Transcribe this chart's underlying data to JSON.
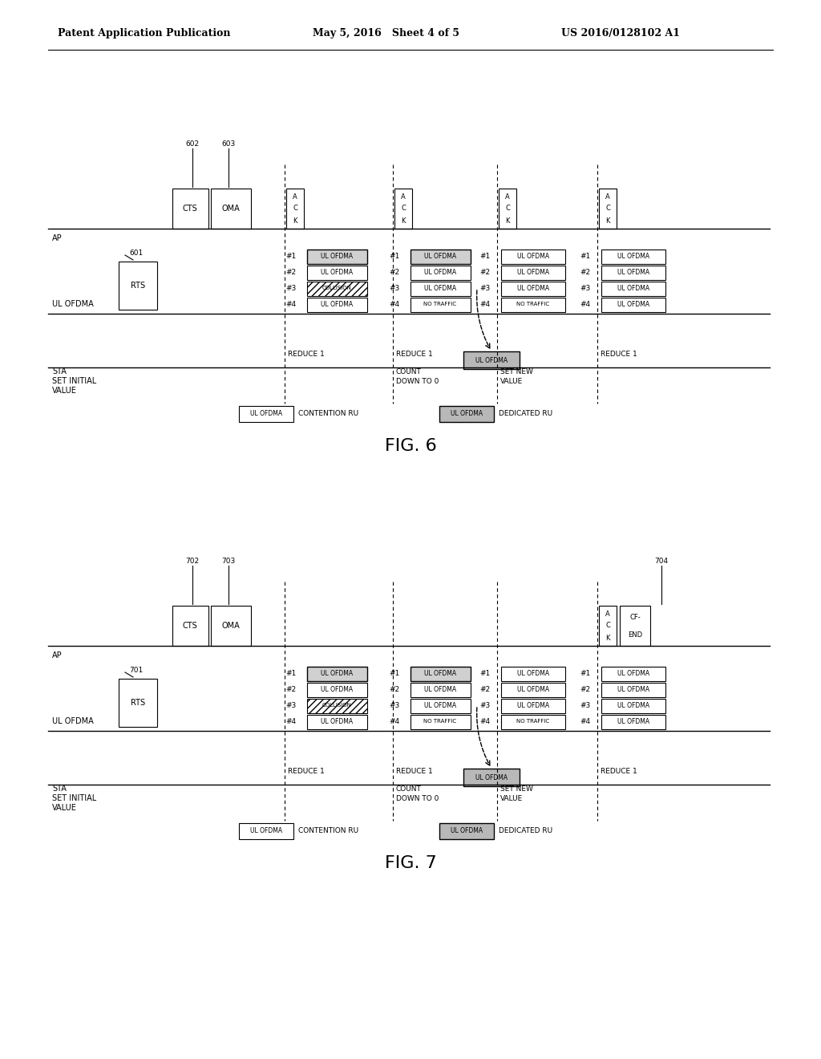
{
  "bg_color": "#ffffff",
  "header_text": "Patent Application Publication",
  "header_date": "May 5, 2016   Sheet 4 of 5",
  "header_patent": "US 2016/0128102 A1",
  "fig6_label": "FIG. 6",
  "fig7_label": "FIG. 7"
}
